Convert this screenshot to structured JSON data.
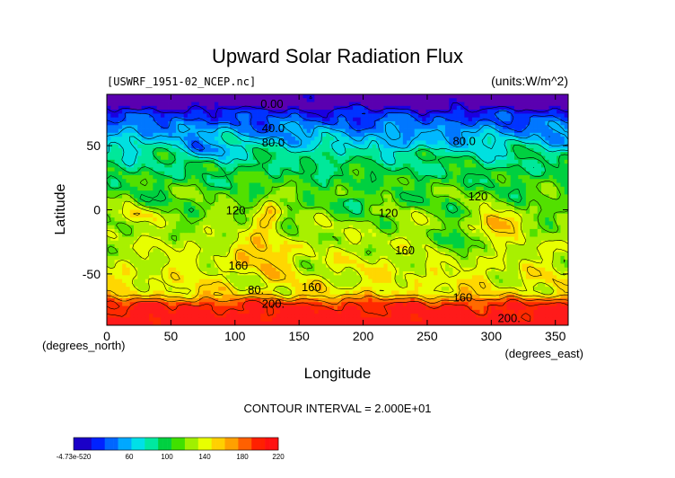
{
  "chart_data": {
    "type": "heatmap",
    "title": "Upward Solar Radiation Flux",
    "file_label": "[USWRF_1951-02_NCEP.nc]",
    "units_label": "(units:W/m^2)",
    "xlabel": "Longitude",
    "x_unit_label": "(degrees_east)",
    "ylabel": "Latitude",
    "y_unit_label": "(degrees_north)",
    "xlim": [
      0,
      360
    ],
    "ylim": [
      -90,
      90
    ],
    "x_ticks": [
      0,
      50,
      100,
      150,
      200,
      250,
      300,
      350
    ],
    "y_ticks": [
      -50,
      0,
      50
    ],
    "contour_interval_text": "CONTOUR INTERVAL = 2.000E+01",
    "contour_labels": [
      {
        "text": "0.00",
        "lon": 120,
        "lat": 83
      },
      {
        "text": "40.0",
        "lon": 121,
        "lat": 64
      },
      {
        "text": "80.0",
        "lon": 121,
        "lat": 53
      },
      {
        "text": "80.0",
        "lon": 270,
        "lat": 54
      },
      {
        "text": "120",
        "lon": 93,
        "lat": 0
      },
      {
        "text": "120",
        "lon": 212,
        "lat": -2
      },
      {
        "text": "120",
        "lon": 282,
        "lat": 11
      },
      {
        "text": "160",
        "lon": 95,
        "lat": -43
      },
      {
        "text": "160",
        "lon": 152,
        "lat": -60
      },
      {
        "text": "160",
        "lon": 225,
        "lat": -31
      },
      {
        "text": "160",
        "lon": 270,
        "lat": -68
      },
      {
        "text": "80.",
        "lon": 110,
        "lat": -62
      },
      {
        "text": "200.",
        "lon": 121,
        "lat": -73
      },
      {
        "text": "200.",
        "lon": 305,
        "lat": -84
      }
    ],
    "colorbar": {
      "tick_labels": [
        "-4.73e-520",
        "60",
        "100",
        "140",
        "180",
        "220"
      ],
      "min": -0.0,
      "max": 220
    },
    "colors": {
      "levels": [
        "#5a00b0",
        "#1a00e0",
        "#0033ff",
        "#0077ff",
        "#00b8ff",
        "#00e0e0",
        "#00e89a",
        "#00d040",
        "#52e000",
        "#a8f000",
        "#e8ff00",
        "#ffd700",
        "#ffa500",
        "#ff6a00",
        "#ff2a00",
        "#ff1a1a"
      ]
    }
  }
}
